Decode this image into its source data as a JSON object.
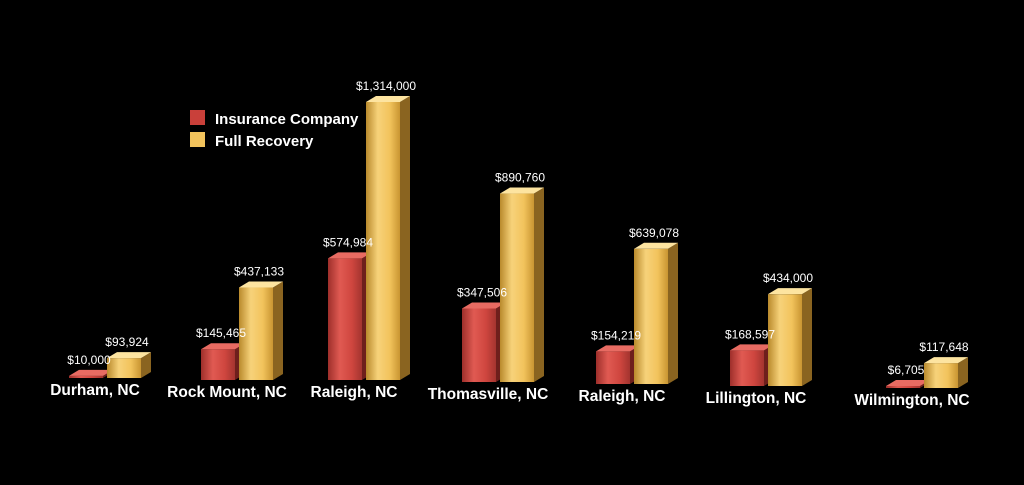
{
  "chart_data": {
    "type": "bar",
    "title": "",
    "xlabel": "",
    "ylabel": "",
    "categories": [
      "Durham, NC",
      "Rock Mount, NC",
      "Raleigh, NC",
      "Thomasville, NC",
      "Raleigh, NC",
      "Lillington, NC",
      "Wilmington, NC"
    ],
    "series": [
      {
        "name": "Insurance Company",
        "values": [
          10000,
          145465,
          574984,
          347506,
          154219,
          168597,
          6705
        ],
        "labels": [
          "$10,000",
          "$145,465",
          "$574,984",
          "$347,506",
          "$154,219",
          "$168,597",
          "$6,705"
        ],
        "color": "#c9403a"
      },
      {
        "name": "Full Recovery",
        "values": [
          93924,
          437133,
          1314000,
          890760,
          639078,
          434000,
          117648
        ],
        "labels": [
          "$93,924",
          "$437,133",
          "$1,314,000",
          "$890,760",
          "$639,078",
          "$434,000",
          "$117,648"
        ],
        "color": "#f2c35c"
      }
    ],
    "grid": false,
    "legend": "top-left"
  }
}
